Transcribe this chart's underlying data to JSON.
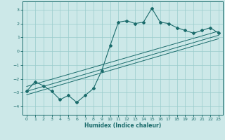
{
  "x_data": [
    0,
    1,
    2,
    3,
    4,
    5,
    6,
    7,
    8,
    9,
    10,
    11,
    12,
    13,
    14,
    15,
    16,
    17,
    18,
    19,
    20,
    21,
    22,
    23
  ],
  "y_main": [
    -2.9,
    -2.2,
    -2.5,
    -2.9,
    -3.5,
    -3.2,
    -3.7,
    -3.2,
    -2.7,
    -1.4,
    0.4,
    2.1,
    2.2,
    2.0,
    2.1,
    3.1,
    2.1,
    2.0,
    1.7,
    1.5,
    1.3,
    1.5,
    1.7,
    1.3
  ],
  "straight_lines": [
    {
      "x": [
        0,
        23
      ],
      "y": [
        -2.9,
        1.15
      ]
    },
    {
      "x": [
        0,
        23
      ],
      "y": [
        -2.55,
        1.45
      ]
    },
    {
      "x": [
        0,
        23
      ],
      "y": [
        -3.15,
        0.9
      ]
    }
  ],
  "xlim": [
    -0.5,
    23.5
  ],
  "ylim": [
    -4.6,
    3.6
  ],
  "yticks": [
    -4,
    -3,
    -2,
    -1,
    0,
    1,
    2,
    3
  ],
  "xticks": [
    0,
    1,
    2,
    3,
    4,
    5,
    6,
    7,
    8,
    9,
    10,
    11,
    12,
    13,
    14,
    15,
    16,
    17,
    18,
    19,
    20,
    21,
    22,
    23
  ],
  "xlabel": "Humidex (Indice chaleur)",
  "bg_color": "#cce8e8",
  "line_color": "#1a6b6b",
  "grid_color": "#99cccc",
  "spine_color": "#1a6b6b"
}
